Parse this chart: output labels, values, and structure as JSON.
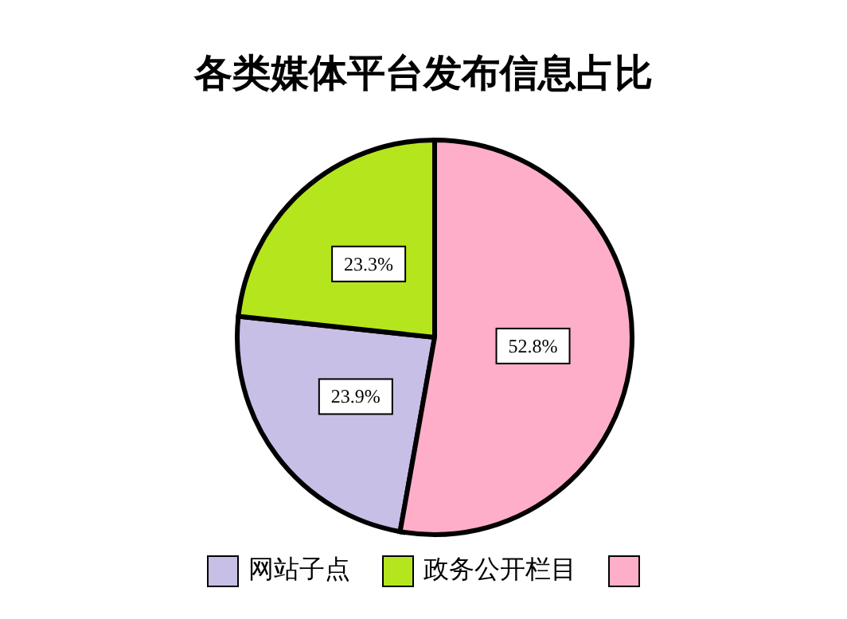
{
  "chart_data": {
    "type": "pie",
    "title": "各类媒体平台发布信息占比",
    "categories": [
      "网站子点",
      "政务公开栏目",
      null
    ],
    "values": [
      23.9,
      23.3,
      52.8
    ],
    "colors": [
      "#c8bfe7",
      "#b5e61d",
      "#ffaec9"
    ],
    "value_labels": [
      "23.9%",
      "23.3%",
      "52.8%"
    ],
    "legend": "bottom"
  }
}
